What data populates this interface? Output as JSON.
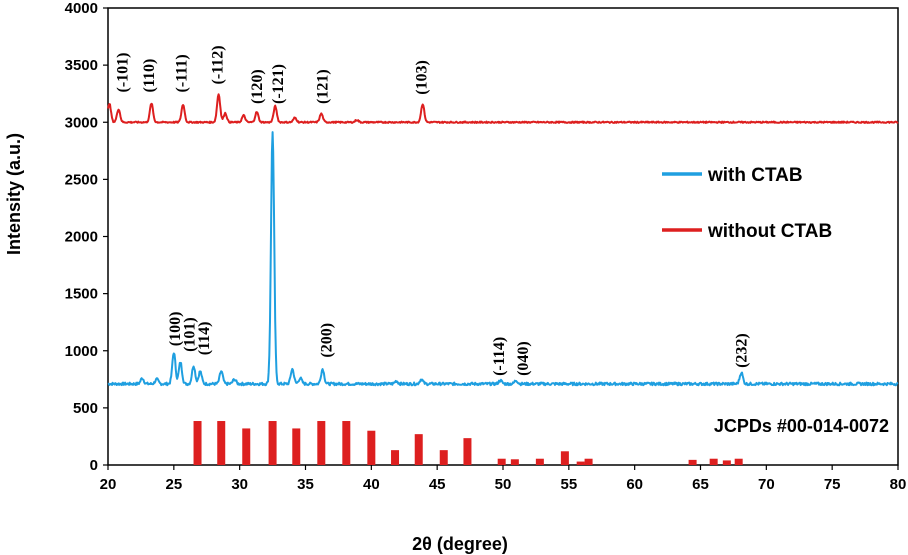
{
  "chart_data": {
    "type": "line",
    "title": "",
    "xlabel": "2θ (degree)",
    "ylabel": "Intensity (a.u.)",
    "xlim": [
      20,
      80
    ],
    "ylim": [
      0,
      4000
    ],
    "x_ticks": [
      20,
      25,
      30,
      35,
      40,
      45,
      50,
      55,
      60,
      65,
      70,
      75,
      80
    ],
    "y_ticks": [
      0,
      500,
      1000,
      1500,
      2000,
      2500,
      3000,
      3500,
      4000
    ],
    "grid": false,
    "legend_position": "right",
    "series": [
      {
        "name": "with CTAB",
        "color": "#1f9fe0",
        "baseline": 710,
        "noise": 12,
        "peaks": [
          {
            "x": 22.6,
            "y": 760
          },
          {
            "x": 23.7,
            "y": 750
          },
          {
            "x": 25.0,
            "y": 985
          },
          {
            "x": 25.5,
            "y": 900
          },
          {
            "x": 26.5,
            "y": 870
          },
          {
            "x": 27.0,
            "y": 820
          },
          {
            "x": 28.6,
            "y": 820
          },
          {
            "x": 29.6,
            "y": 750
          },
          {
            "x": 32.5,
            "y": 2920
          },
          {
            "x": 34.0,
            "y": 840
          },
          {
            "x": 34.6,
            "y": 760
          },
          {
            "x": 36.3,
            "y": 840
          },
          {
            "x": 41.9,
            "y": 735
          },
          {
            "x": 43.8,
            "y": 750
          },
          {
            "x": 49.8,
            "y": 740
          },
          {
            "x": 51.0,
            "y": 740
          },
          {
            "x": 68.1,
            "y": 810
          }
        ]
      },
      {
        "name": "without CTAB",
        "color": "#dd1f1f",
        "baseline": 3000,
        "noise": 6,
        "peaks": [
          {
            "x": 20.1,
            "y": 3165
          },
          {
            "x": 20.8,
            "y": 3115
          },
          {
            "x": 23.3,
            "y": 3165
          },
          {
            "x": 25.7,
            "y": 3155
          },
          {
            "x": 28.4,
            "y": 3245
          },
          {
            "x": 28.9,
            "y": 3080
          },
          {
            "x": 30.3,
            "y": 3060
          },
          {
            "x": 31.3,
            "y": 3090
          },
          {
            "x": 32.7,
            "y": 3140
          },
          {
            "x": 34.2,
            "y": 3040
          },
          {
            "x": 36.2,
            "y": 3075
          },
          {
            "x": 38.9,
            "y": 3020
          },
          {
            "x": 43.9,
            "y": 3160
          }
        ]
      },
      {
        "name": "JCPDs #00-014-0072",
        "type": "stick",
        "color": "#dd1f1f",
        "x": [
          26.8,
          28.6,
          30.5,
          32.5,
          34.3,
          36.2,
          38.1,
          40.0,
          41.8,
          43.6,
          45.5,
          47.3,
          49.9,
          50.9,
          52.8,
          54.7,
          55.9,
          56.5,
          64.4,
          66.0,
          67.0,
          67.9
        ],
        "values": [
          385,
          385,
          320,
          385,
          320,
          385,
          385,
          300,
          130,
          270,
          130,
          235,
          55,
          50,
          55,
          120,
          30,
          55,
          45,
          55,
          40,
          55
        ]
      }
    ],
    "peak_labels": [
      {
        "text": "(-101)",
        "x": 21.1,
        "y": 3260
      },
      {
        "text": "(110)",
        "x": 23.1,
        "y": 3260
      },
      {
        "text": "(-111)",
        "x": 25.6,
        "y": 3260
      },
      {
        "text": "(-112)",
        "x": 28.3,
        "y": 3330
      },
      {
        "text": "(120)",
        "x": 31.3,
        "y": 3160
      },
      {
        "text": "(-121)",
        "x": 32.9,
        "y": 3160
      },
      {
        "text": "(121)",
        "x": 36.3,
        "y": 3160
      },
      {
        "text": "(103)",
        "x": 43.8,
        "y": 3240
      },
      {
        "text": "(100)",
        "x": 25.1,
        "y": 1040
      },
      {
        "text": "(101)",
        "x": 26.2,
        "y": 990
      },
      {
        "text": "(114)",
        "x": 27.3,
        "y": 960
      },
      {
        "text": "(200)",
        "x": 36.6,
        "y": 940
      },
      {
        "text": "(-114)",
        "x": 49.7,
        "y": 780
      },
      {
        "text": "(040)",
        "x": 51.5,
        "y": 780
      },
      {
        "text": "(232)",
        "x": 68.1,
        "y": 850
      }
    ],
    "reference_label": "JCPDs #00-014-0072"
  }
}
